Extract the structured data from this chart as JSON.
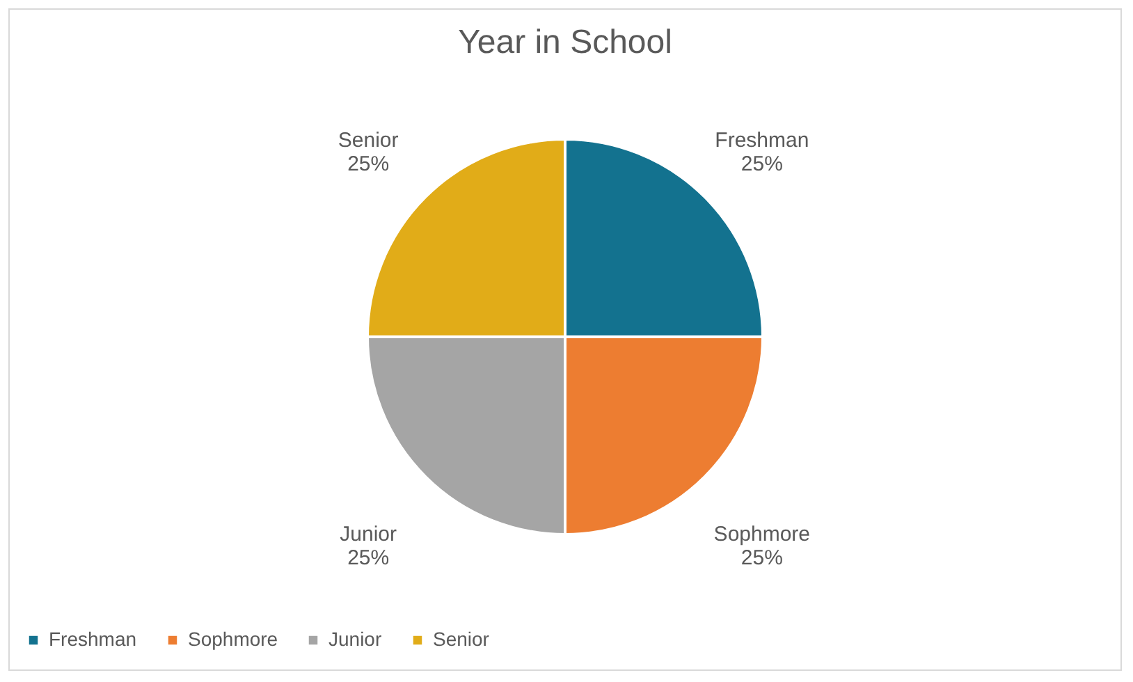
{
  "chart_data": {
    "type": "pie",
    "title": "Year in School",
    "categories": [
      "Freshman",
      "Sophmore",
      "Junior",
      "Senior"
    ],
    "values": [
      25,
      25,
      25,
      25
    ],
    "value_labels": [
      "25%",
      "25%",
      "25%",
      "25%"
    ],
    "colors": [
      "#13728f",
      "#ed7d31",
      "#a5a5a5",
      "#e1ac18"
    ],
    "legend": "bottom"
  }
}
